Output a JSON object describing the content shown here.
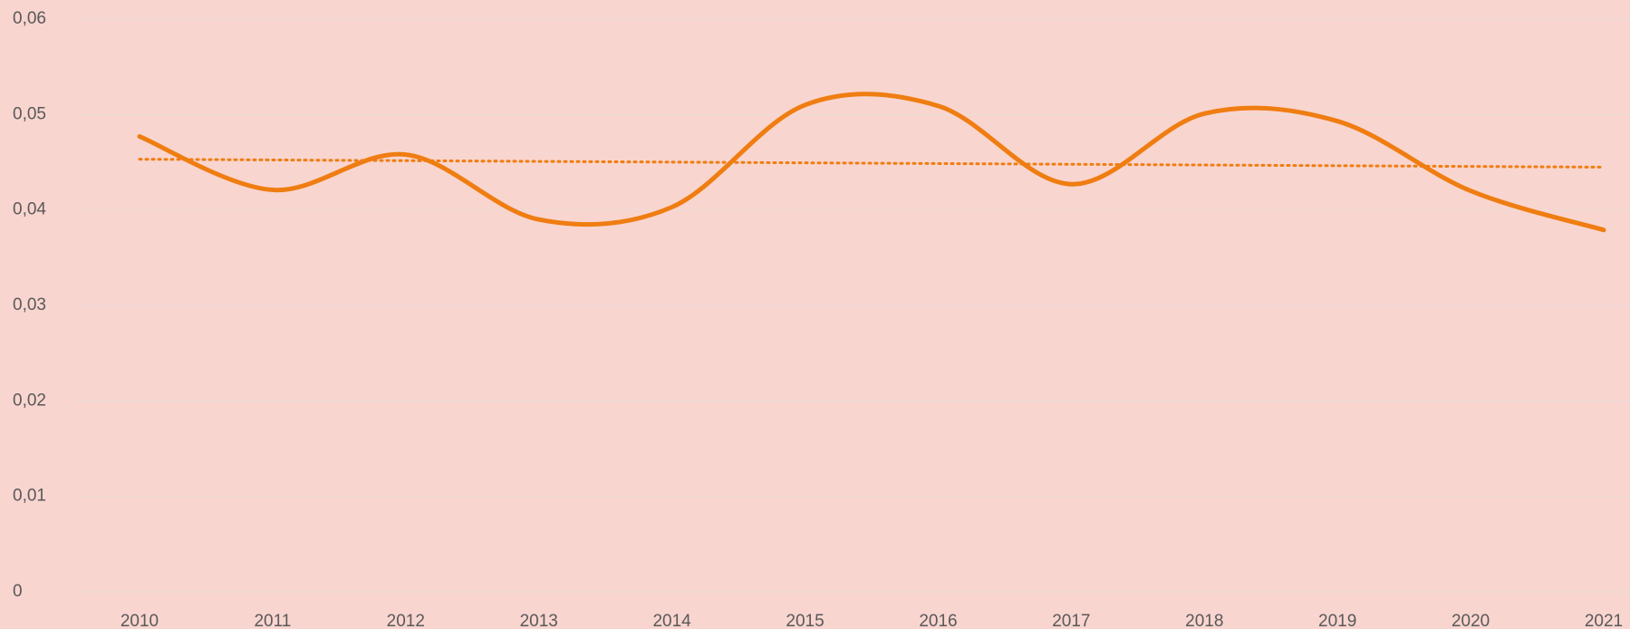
{
  "chart_data": {
    "type": "line",
    "categories": [
      "2010",
      "2011",
      "2012",
      "2013",
      "2014",
      "2015",
      "2016",
      "2017",
      "2018",
      "2019",
      "2020",
      "2021"
    ],
    "series": [
      {
        "color": "#ef7d11",
        "values": [
          0.0477,
          0.0421,
          0.0458,
          0.039,
          0.0403,
          0.051,
          0.0509,
          0.0427,
          0.0501,
          0.0493,
          0.042,
          0.0379
        ]
      }
    ],
    "smooth": true,
    "trendline": "linear",
    "ylim": [
      0,
      0.06
    ],
    "yticks": [
      0,
      {
        "value": 0.01,
        "label": "0,01"
      },
      {
        "value": 0.02,
        "label": "0,02"
      },
      {
        "value": 0.03,
        "label": "0,03"
      },
      {
        "value": 0.04,
        "label": "0,04"
      },
      {
        "value": 0.05,
        "label": "0,05"
      },
      {
        "value": 0.06,
        "label": "0,06"
      }
    ],
    "grid": true
  }
}
